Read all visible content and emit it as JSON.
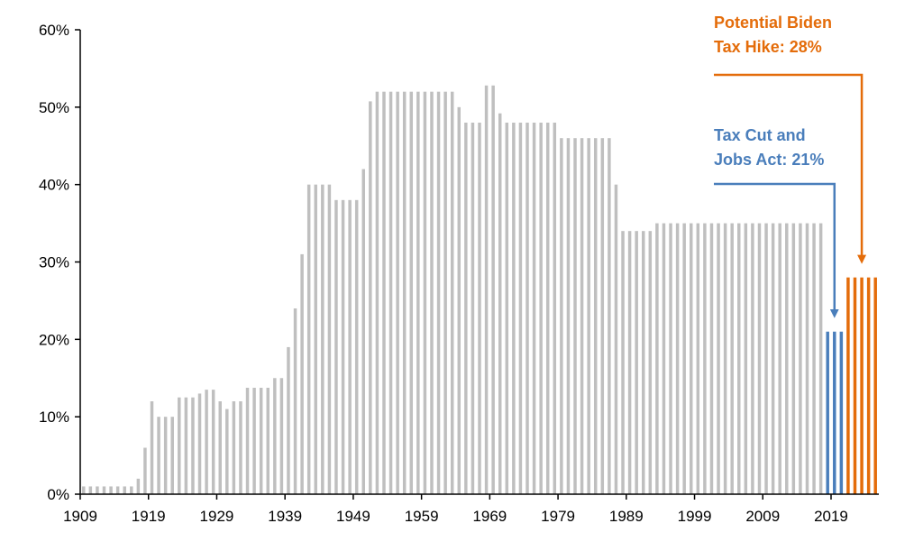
{
  "chart_data": {
    "type": "bar",
    "title": "",
    "xlabel": "",
    "ylabel": "",
    "ylim": [
      0,
      60
    ],
    "yticks": [
      "0%",
      "10%",
      "20%",
      "30%",
      "40%",
      "50%",
      "60%"
    ],
    "xticks": [
      "1909",
      "1919",
      "1929",
      "1939",
      "1949",
      "1959",
      "1969",
      "1979",
      "1989",
      "1999",
      "2009",
      "2019"
    ],
    "grid": false,
    "legend": "none",
    "colors": {
      "historical": "#bfbfbf",
      "tcja": "#4a7ebb",
      "biden": "#e46c0a"
    },
    "series": [
      {
        "color": "historical",
        "x": [
          1909,
          1910,
          1911,
          1912,
          1913,
          1914,
          1915,
          1916,
          1917,
          1918,
          1919,
          1920,
          1921,
          1922,
          1923,
          1924,
          1925,
          1926,
          1927,
          1928,
          1929,
          1930,
          1931,
          1932,
          1933,
          1934,
          1935,
          1936,
          1937,
          1938,
          1939,
          1940,
          1941,
          1942,
          1943,
          1944,
          1945,
          1946,
          1947,
          1948,
          1949,
          1950,
          1951,
          1952,
          1953,
          1954,
          1955,
          1956,
          1957,
          1958,
          1959,
          1960,
          1961,
          1962,
          1963,
          1964,
          1965,
          1966,
          1967,
          1968,
          1969,
          1970,
          1971,
          1972,
          1973,
          1974,
          1975,
          1976,
          1977,
          1978,
          1979,
          1980,
          1981,
          1982,
          1983,
          1984,
          1985,
          1986,
          1987,
          1988,
          1989,
          1990,
          1991,
          1992,
          1993,
          1994,
          1995,
          1996,
          1997,
          1998,
          1999,
          2000,
          2001,
          2002,
          2003,
          2004,
          2005,
          2006,
          2007,
          2008,
          2009,
          2010,
          2011,
          2012,
          2013,
          2014,
          2015,
          2016,
          2017
        ],
        "values": [
          1,
          1,
          1,
          1,
          1,
          1,
          1,
          1,
          2,
          6,
          12,
          10,
          10,
          10,
          12.5,
          12.5,
          12.5,
          13,
          13.5,
          13.5,
          12,
          11,
          12,
          12,
          13.75,
          13.75,
          13.75,
          13.75,
          15,
          15,
          19,
          24,
          31,
          40,
          40,
          40,
          40,
          38,
          38,
          38,
          38,
          42,
          50.75,
          52,
          52,
          52,
          52,
          52,
          52,
          52,
          52,
          52,
          52,
          52,
          52,
          50,
          48,
          48,
          48,
          52.8,
          52.8,
          49.2,
          48,
          48,
          48,
          48,
          48,
          48,
          48,
          48,
          46,
          46,
          46,
          46,
          46,
          46,
          46,
          46,
          40,
          34,
          34,
          34,
          34,
          34,
          35,
          35,
          35,
          35,
          35,
          35,
          35,
          35,
          35,
          35,
          35,
          35,
          35,
          35,
          35,
          35,
          35,
          35,
          35,
          35,
          35,
          35,
          35,
          35,
          35
        ]
      },
      {
        "color": "tcja",
        "x": [
          2018,
          2019,
          2020
        ],
        "values": [
          21,
          21,
          21
        ]
      },
      {
        "color": "biden",
        "x": [
          2021,
          2022,
          2023,
          2024,
          2025
        ],
        "values": [
          28,
          28,
          28,
          28,
          28
        ]
      }
    ],
    "annotations": [
      {
        "lines": [
          "Potential Biden",
          "Tax Hike: 28%"
        ],
        "color": "biden",
        "points_to": "biden"
      },
      {
        "lines": [
          "Tax Cut and",
          "Jobs Act: 21%"
        ],
        "color": "tcja",
        "points_to": "tcja"
      }
    ]
  }
}
